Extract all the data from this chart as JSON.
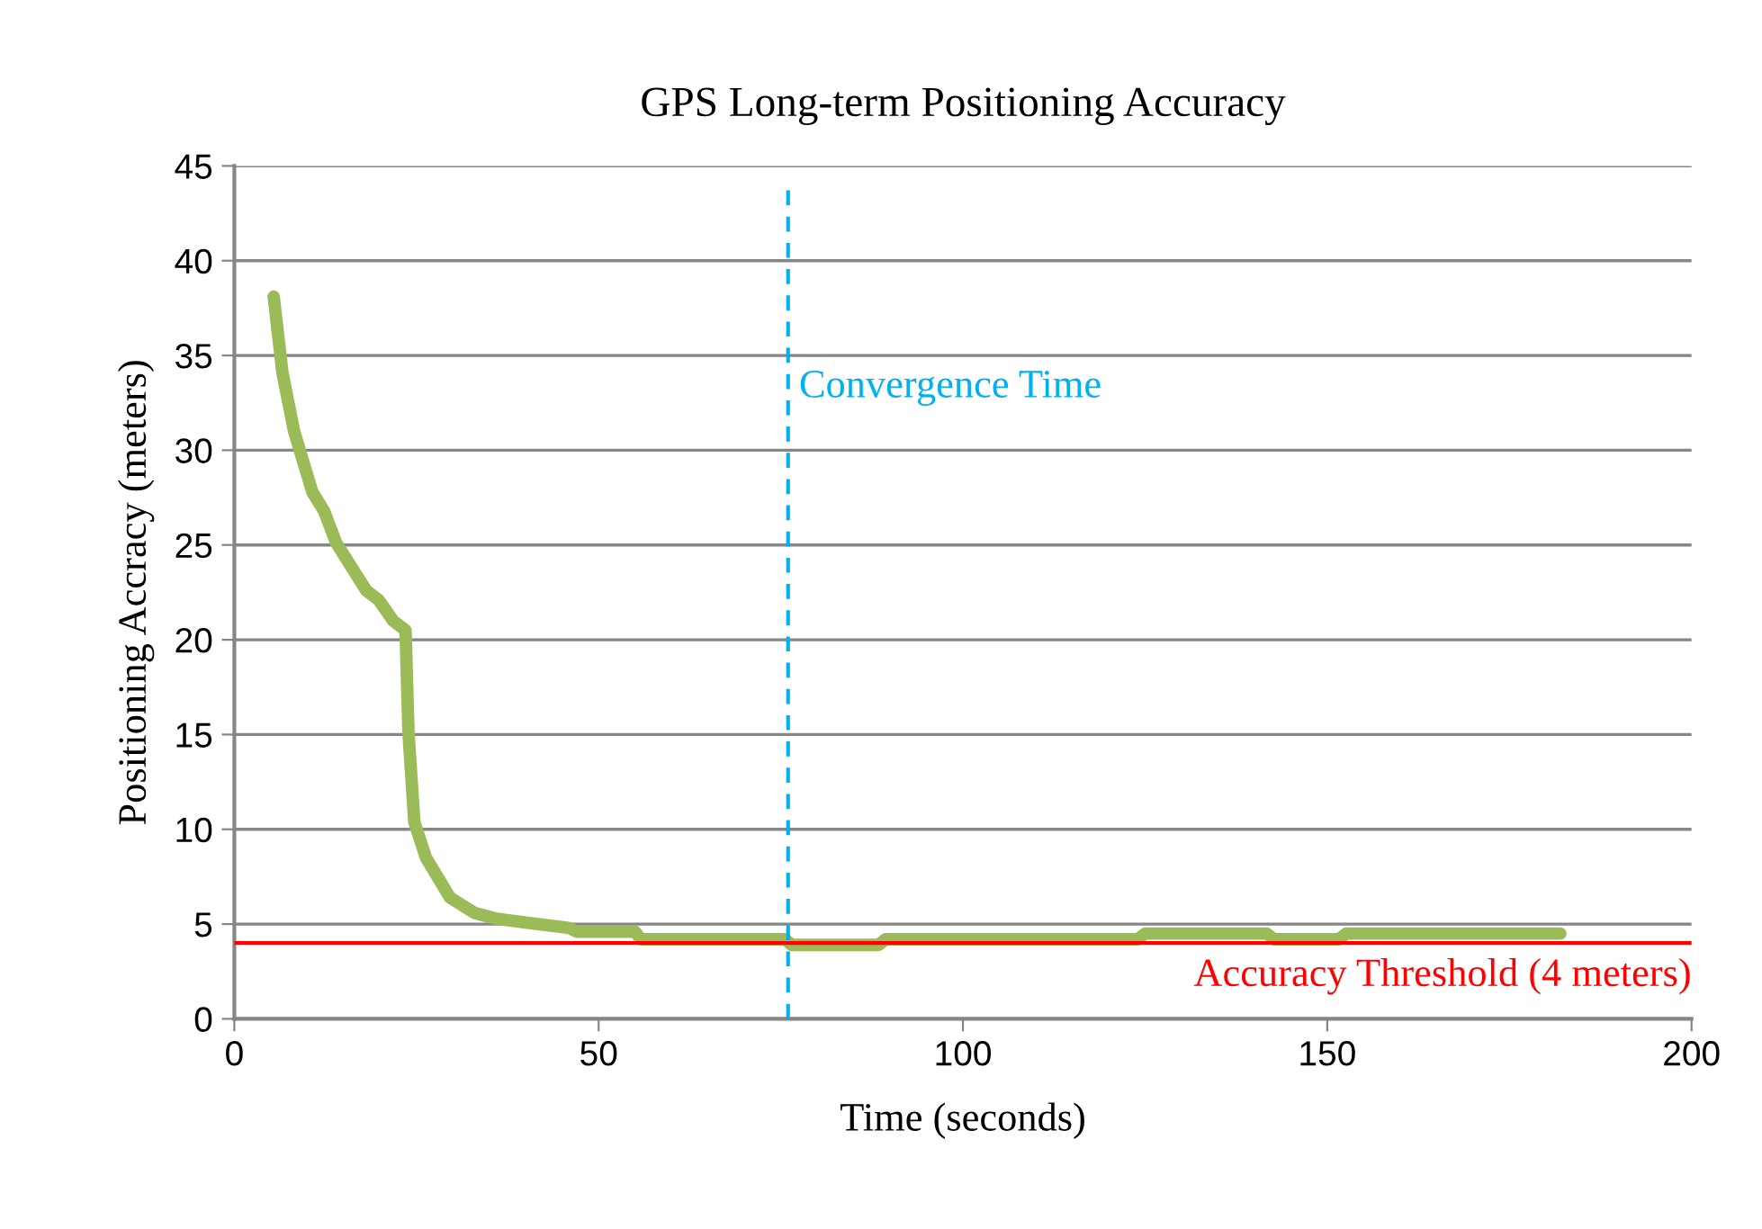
{
  "chart_data": {
    "type": "line",
    "title": "GPS Long-term Positioning Accuracy",
    "xlabel": "Time (seconds)",
    "ylabel": "Positioning Accracy (meters)",
    "series": [
      {
        "color": "#9bbb59",
        "x": [
          5.4,
          6.6,
          8.2,
          10.7,
          12.3,
          14.0,
          18.1,
          19.8,
          21.8,
          23.5,
          23.9,
          24.7,
          26.3,
          29.6,
          32.9,
          35.8,
          39.5,
          45.9,
          47,
          55,
          55.8,
          75.6,
          76.5,
          88.4,
          89.4,
          124,
          125,
          141.7,
          142.7,
          151.6,
          152.6,
          182
        ],
        "values": [
          38.1,
          34.1,
          31.0,
          27.8,
          26.8,
          25.1,
          22.6,
          22.1,
          21.0,
          20.5,
          15.1,
          10.4,
          8.5,
          6.4,
          5.6,
          5.3,
          5.1,
          4.8,
          4.6,
          4.6,
          4.2,
          4.2,
          3.9,
          3.9,
          4.2,
          4.2,
          4.5,
          4.5,
          4.2,
          4.2,
          4.5,
          4.5
        ]
      }
    ],
    "ref_lines": [
      {
        "axis": "x",
        "value": 76,
        "label": "Convergence Time",
        "color": "#00b0f0",
        "line_style": "dashed"
      },
      {
        "axis": "y",
        "value": 4,
        "label": "Accuracy Threshold (4 meters)",
        "color": "#ff0000",
        "line_style": "solid"
      }
    ],
    "xlim": [
      0,
      200
    ],
    "xticks": [
      0,
      50,
      100,
      150,
      200
    ],
    "ylim": [
      0,
      45
    ],
    "yticks": [
      0,
      5,
      10,
      15,
      20,
      25,
      30,
      35,
      40,
      45
    ],
    "grid": "y",
    "legend": false,
    "marker": "none",
    "line_style": "solid"
  }
}
